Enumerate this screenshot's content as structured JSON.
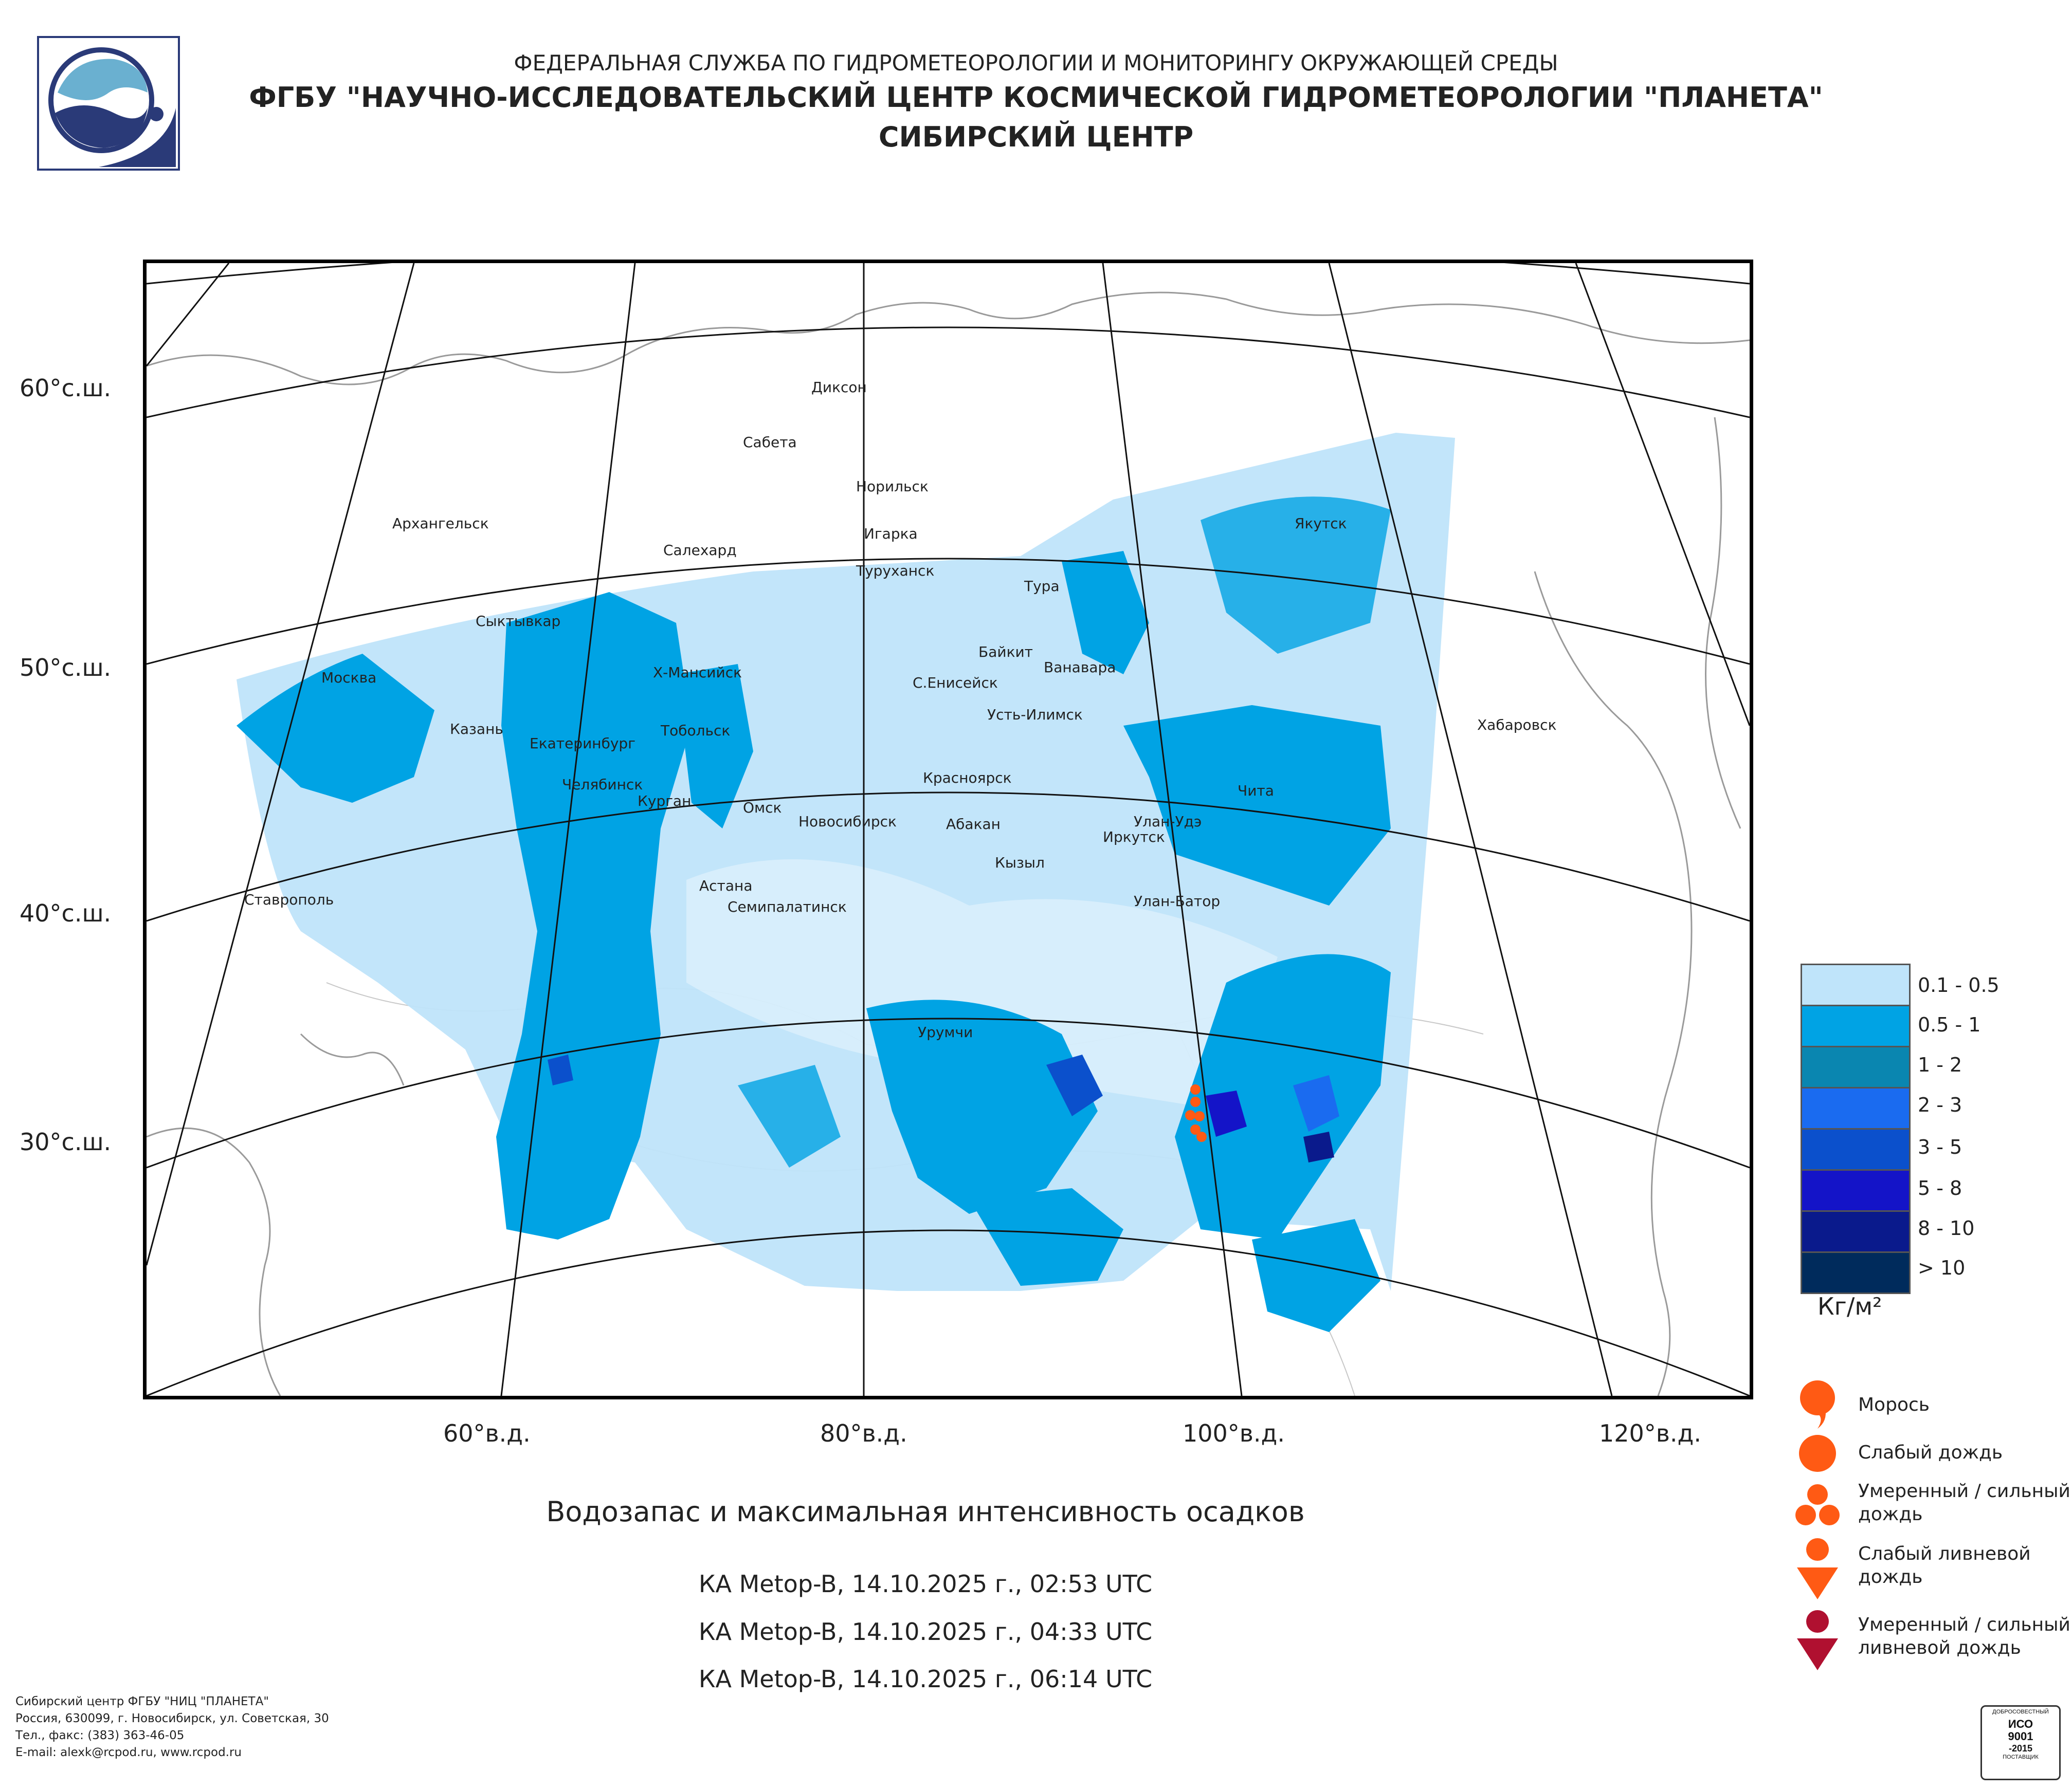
{
  "header": {
    "line1": "ФЕДЕРАЛЬНАЯ СЛУЖБА ПО ГИДРОМЕТЕОРОЛОГИИ И МОНИТОРИНГУ ОКРУЖАЮЩЕЙ СРЕДЫ",
    "line2": "ФГБУ \"НАУЧНО-ИССЛЕДОВАТЕЛЬСКИЙ ЦЕНТР КОСМИЧЕСКОЙ ГИДРОМЕТЕОРОЛОГИИ \"ПЛАНЕТА\"",
    "line3": "СИБИРСКИЙ ЦЕНТР"
  },
  "map": {
    "lat_labels": [
      "60°с.ш.",
      "50°с.ш.",
      "40°с.ш.",
      "30°с.ш."
    ],
    "lon_labels": [
      "60°в.д.",
      "80°в.д.",
      "100°в.д.",
      "120°в.д."
    ],
    "cities": [
      "Диксон",
      "Сабета",
      "Норильск",
      "Архангельск",
      "Игарка",
      "Салехард",
      "Туруханск",
      "Якутск",
      "Тура",
      "Сыктывкар",
      "Байкит",
      "Ванавара",
      "Москва",
      "Х-Мансийск",
      "С.Енисейск",
      "Усть-Илимск",
      "Хабаровск",
      "Казань",
      "Тобольск",
      "Екатеринбург",
      "Красноярск",
      "Челябинск",
      "Курган",
      "Чита",
      "Омск",
      "Новосибирск",
      "Абакан",
      "Улан-Удэ",
      "Иркутск",
      "Кызыл",
      "Астана",
      "Ставрополь",
      "Семипалатинск",
      "Улан-Батор",
      "Урумчи"
    ]
  },
  "legend": {
    "ranges": [
      "0.1 - 0.5",
      "0.5 - 1",
      "1 - 2",
      "2 - 3",
      "3 - 5",
      "5 - 8",
      "8 - 10",
      "> 10"
    ],
    "colors": [
      "#bfe4fa",
      "#00a3e4",
      "#0a86b0",
      "#1a6bf0",
      "#0b50cc",
      "#1414c8",
      "#0a1a8c",
      "#002b5c"
    ],
    "unit": "Кг/м²",
    "symbols": [
      {
        "icon": "drizzle-icon",
        "label": "Морось"
      },
      {
        "icon": "light-rain-icon",
        "label": "Слабый дождь"
      },
      {
        "icon": "moderate-rain-icon",
        "label_1": "Умеренный / сильный",
        "label_2": "дождь"
      },
      {
        "icon": "light-shower-icon",
        "label_1": "Слабый ливневой",
        "label_2": "дождь"
      },
      {
        "icon": "heavy-shower-icon",
        "label_1": "Умеренный / сильный",
        "label_2": "ливневой дождь"
      }
    ]
  },
  "title": "Водозапас и максимальная интенсивность осадков",
  "passes": [
    "КА Metop-B, 14.10.2025 г., 02:53 UTC",
    "КА Metop-B, 14.10.2025 г., 04:33 UTC",
    "КА Metop-B, 14.10.2025 г., 06:14 UTC"
  ],
  "footer": {
    "line1": "Сибирский центр ФГБУ \"НИЦ \"ПЛАНЕТА\"",
    "line2": "Россия, 630099, г. Новосибирск, ул. Советская, 30",
    "line3": "Тел., факс: (383) 363-46-05",
    "line4": "E-mail: alexk@rcpod.ru, www.rcpod.ru"
  },
  "cert": {
    "top": "ДОБРОСОВЕСТНЫЙ",
    "l1": "ИСО",
    "l2": "9001",
    "l3": "-2015",
    "bottom": "ПОСТАВЩИК"
  }
}
